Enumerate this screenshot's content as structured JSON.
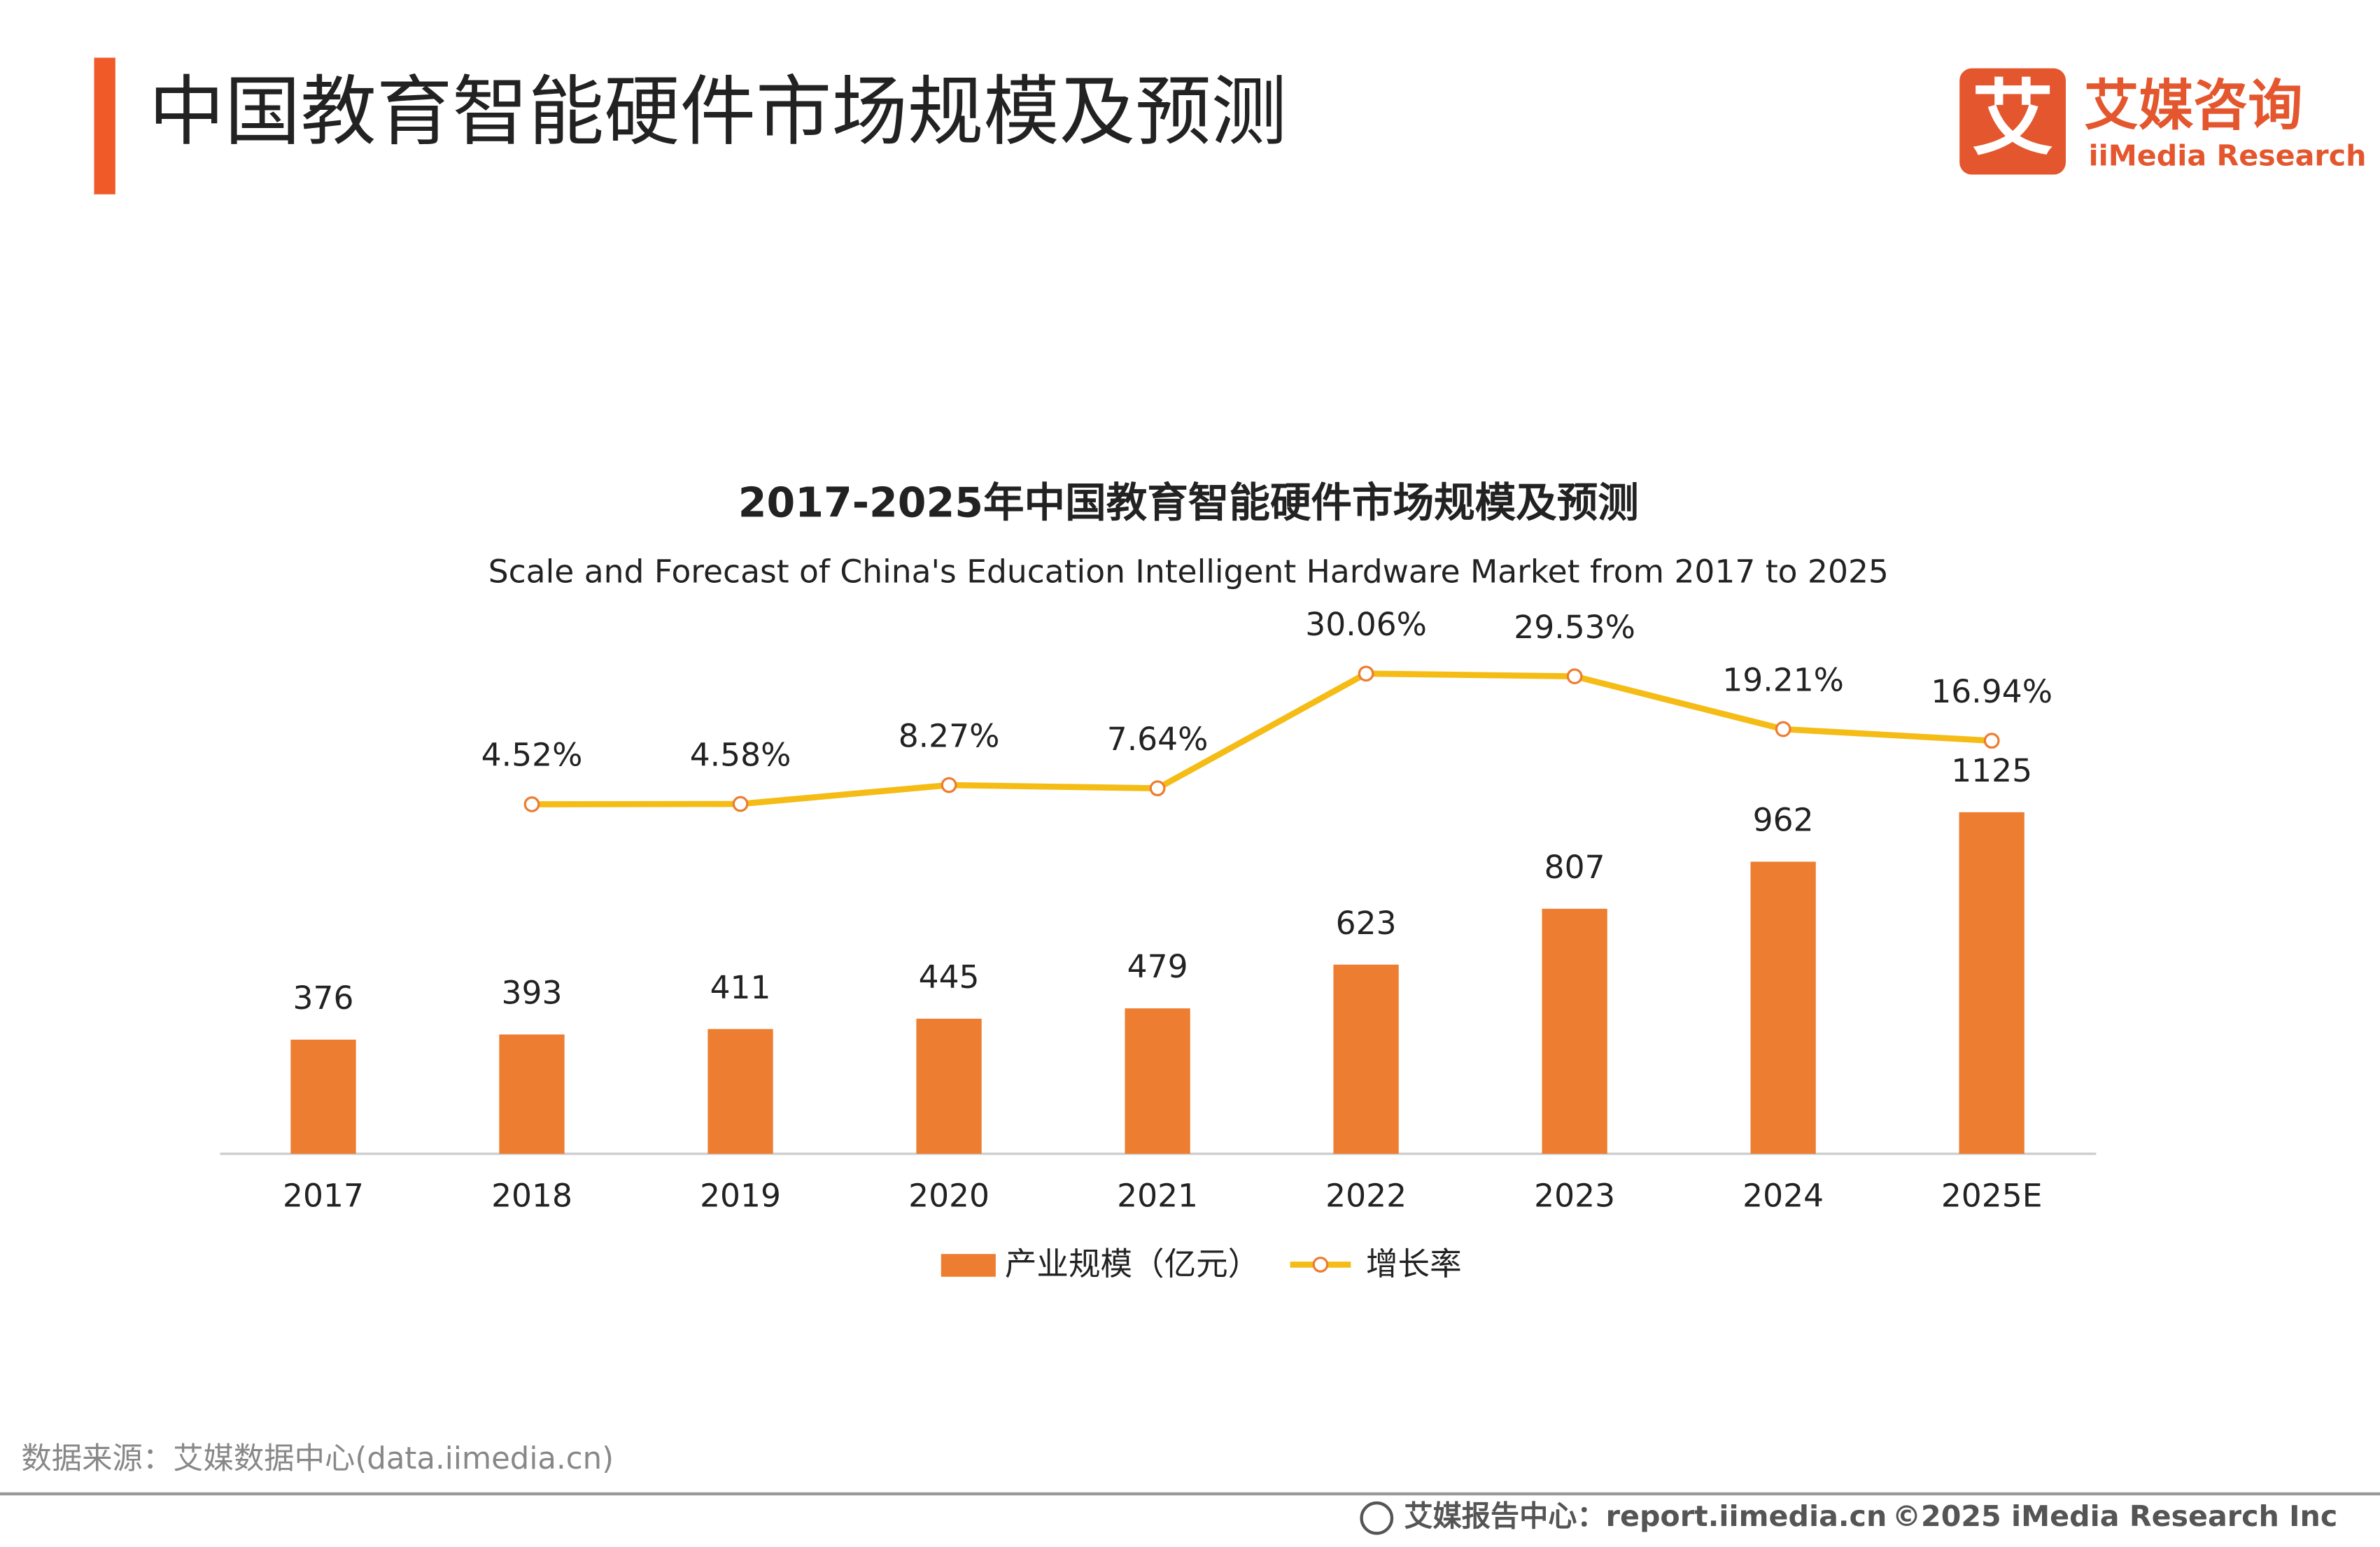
{
  "header": {
    "title": "中国教育智能硬件市场规模及预测",
    "logo_mark": "艾",
    "logo_name": "艾媒咨询",
    "logo_sub": "iiMedia Research"
  },
  "chart_data": {
    "type": "bar",
    "title": "2017-2025年中国教育智能硬件市场规模及预测",
    "subtitle": "Scale and Forecast of China's Education Intelligent Hardware Market from 2017 to 2025",
    "categories": [
      "2017",
      "2018",
      "2019",
      "2020",
      "2021",
      "2022",
      "2023",
      "2024",
      "2025E"
    ],
    "series": [
      {
        "name": "产业规模（亿元）",
        "type": "bar",
        "color": "#ed7d31",
        "values": [
          376,
          393,
          411,
          445,
          479,
          623,
          807,
          962,
          1125
        ]
      },
      {
        "name": "增长率",
        "type": "line",
        "color": "#f5bc16",
        "values": [
          null,
          4.52,
          4.58,
          8.27,
          7.64,
          30.06,
          29.53,
          19.21,
          16.94
        ],
        "value_labels": [
          null,
          "4.52%",
          "4.58%",
          "8.27%",
          "7.64%",
          "30.06%",
          "29.53%",
          "19.21%",
          "16.94%"
        ]
      }
    ],
    "legend": "bottom"
  },
  "footer": {
    "source": "数据来源：艾媒数据中心(data.iimedia.cn)",
    "site": "艾媒报告中心：report.iimedia.cn",
    "copyright": "©2025  iMedia Research  Inc"
  }
}
